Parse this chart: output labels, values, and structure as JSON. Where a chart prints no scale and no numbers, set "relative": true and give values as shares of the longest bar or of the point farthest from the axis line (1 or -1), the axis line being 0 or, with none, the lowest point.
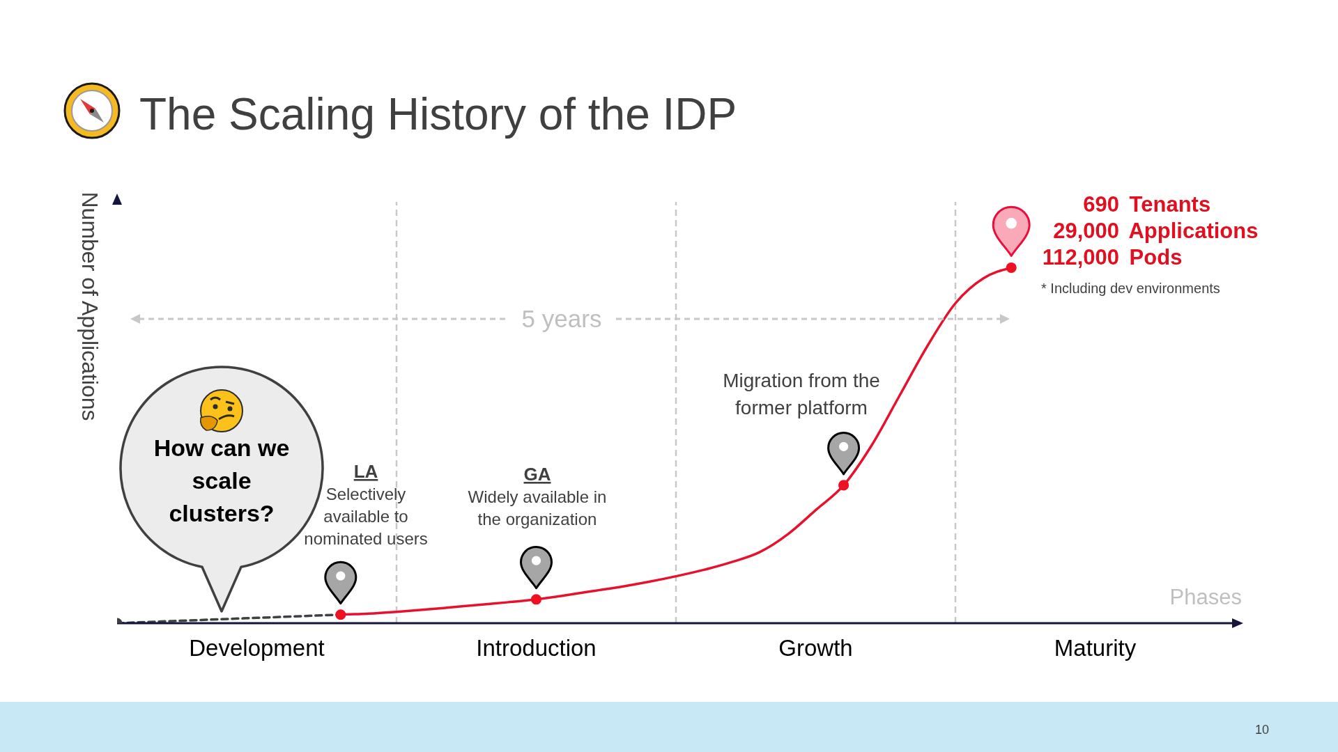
{
  "chart_data": {
    "type": "line",
    "title": "The Scaling History of the IDP",
    "xlabel": "Phases",
    "ylabel": "Number of Applications",
    "relative": true,
    "grid": "x",
    "categories": [
      null,
      null,
      null,
      null,
      null,
      "Development",
      null,
      null,
      null,
      null,
      null,
      null,
      null,
      null,
      null,
      "Introduction",
      null,
      null,
      null,
      null,
      null,
      null,
      null,
      null,
      null,
      "Growth",
      null,
      null,
      null,
      null,
      null,
      null,
      null,
      null,
      null,
      "Maturity",
      null,
      null,
      null,
      null,
      null
    ],
    "series": [
      {
        "color": "#404040",
        "values": [
          0,
          0.003,
          0.006,
          0.009,
          0.012,
          0.015,
          0.018,
          0.021,
          0.024,
          null,
          null,
          null,
          null,
          null,
          null,
          null,
          null,
          null,
          null,
          null,
          null,
          null,
          null,
          null,
          null,
          null,
          null,
          null,
          null,
          null,
          null,
          null,
          null,
          null,
          null,
          null,
          null,
          null,
          null,
          null,
          null
        ],
        "line_style": "dashed",
        "marker": "none"
      },
      {
        "color": "#e8112d",
        "values": [
          null,
          null,
          null,
          null,
          null,
          null,
          null,
          null,
          0.024,
          0.027,
          0.032,
          0.038,
          0.045,
          0.052,
          0.059,
          0.067,
          0.078,
          0.09,
          0.102,
          0.116,
          0.132,
          0.15,
          0.172,
          0.2,
          0.25,
          0.318,
          0.388,
          0.5,
          0.64,
          0.78,
          0.9,
          0.97,
          1,
          null,
          null,
          null,
          null,
          null,
          null,
          null,
          null
        ],
        "line_style": "solid",
        "marker": "none"
      },
      {
        "type": "scatter",
        "values": [
          0,
          null,
          null,
          null,
          null,
          null,
          null,
          null,
          0.024,
          null,
          null,
          null,
          null,
          null,
          null,
          0.067,
          null,
          null,
          null,
          null,
          null,
          null,
          null,
          null,
          null,
          null,
          0.388,
          null,
          null,
          null,
          null,
          null,
          1,
          null,
          null,
          null,
          null,
          null,
          null,
          null,
          null
        ],
        "colors": [
          "#404040",
          null,
          null,
          null,
          null,
          null,
          null,
          null,
          "#ee1122",
          null,
          null,
          null,
          null,
          null,
          null,
          "#ee1122",
          null,
          null,
          null,
          null,
          null,
          null,
          null,
          null,
          null,
          null,
          "#ee1122",
          null,
          null,
          null,
          null,
          null,
          "#ee1122",
          null,
          null,
          null,
          null,
          null,
          null,
          null,
          null
        ],
        "marker": "circle"
      }
    ],
    "annotations": [
      "LA",
      "Selectively available to nominated users",
      "GA",
      "Widely available in the organization",
      "Migration from the former platform",
      "690 Tenants",
      "29,000 Applications",
      "112,000 Pods",
      "* Including dev environments",
      "5 years",
      "How can we scale clusters?",
      "10"
    ]
  }
}
